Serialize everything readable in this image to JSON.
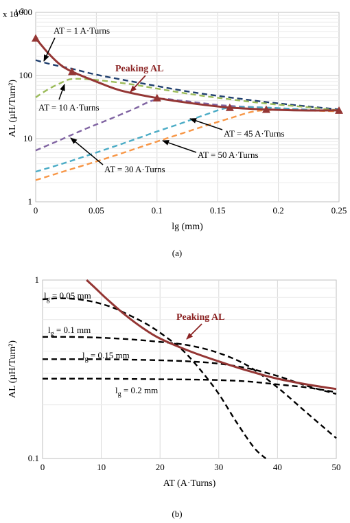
{
  "chart_data": [
    {
      "type": "line",
      "panel": "(a)",
      "xlabel": "lg (mm)",
      "ylabel": "AL (µH/Turn²)",
      "y_multiplier": "x 10",
      "y_multiplier_exp": "-2",
      "xlim": [
        0,
        0.25
      ],
      "ylim": [
        1,
        1000
      ],
      "yscale": "log",
      "grid": true,
      "x_ticks": [
        "0",
        "0.05",
        "0.1",
        "0.15",
        "0.2",
        "0.25"
      ],
      "y_ticks": [
        "1",
        "10",
        "100",
        "1000"
      ],
      "series": [
        {
          "name": "AT = 1 A·Turns",
          "color": "#1F3F6E",
          "dash": true,
          "x": [
            0,
            0.01,
            0.02,
            0.03,
            0.05,
            0.08,
            0.1,
            0.13,
            0.16,
            0.19,
            0.22,
            0.25
          ],
          "y": [
            175,
            155,
            140,
            128,
            103,
            80,
            68,
            54,
            45,
            38,
            33,
            29
          ]
        },
        {
          "name": "AT = 10 A·Turns",
          "color": "#9BBB59",
          "dash": true,
          "x": [
            0,
            0.01,
            0.02,
            0.03,
            0.05,
            0.08,
            0.1,
            0.13,
            0.16,
            0.19,
            0.22,
            0.25
          ],
          "y": [
            45,
            60,
            75,
            88,
            85,
            72,
            62,
            50,
            42,
            36,
            32,
            28
          ]
        },
        {
          "name": "AT = 30 A·Turns",
          "color": "#8064A2",
          "dash": true,
          "x": [
            0,
            0.02,
            0.04,
            0.06,
            0.08,
            0.1,
            0.12,
            0.14,
            0.16,
            0.19,
            0.22,
            0.25
          ],
          "y": [
            6.5,
            9.5,
            14,
            20,
            29,
            42,
            40,
            36,
            33,
            31,
            29,
            27
          ]
        },
        {
          "name": "AT = 45 A·Turns",
          "color": "#4BACC6",
          "dash": true,
          "x": [
            0,
            0.02,
            0.04,
            0.06,
            0.08,
            0.1,
            0.12,
            0.14,
            0.16,
            0.19,
            0.22,
            0.25
          ],
          "y": [
            3,
            3.9,
            5.2,
            7,
            9.5,
            13,
            17.5,
            24,
            31,
            31,
            29,
            27
          ]
        },
        {
          "name": "AT = 50 A·Turns",
          "color": "#F79646",
          "dash": true,
          "x": [
            0,
            0.02,
            0.04,
            0.06,
            0.08,
            0.1,
            0.12,
            0.14,
            0.16,
            0.18,
            0.2,
            0.22,
            0.25
          ],
          "y": [
            2.2,
            2.9,
            3.8,
            5,
            6.7,
            9,
            12,
            16,
            21,
            27,
            28.5,
            28,
            27
          ]
        },
        {
          "name": "Peaking AL",
          "color": "#943634",
          "dash": false,
          "markers": "triangle",
          "x": [
            0,
            0.01,
            0.02,
            0.03,
            0.05,
            0.07,
            0.1,
            0.13,
            0.16,
            0.19,
            0.22,
            0.25
          ],
          "y": [
            390,
            230,
            150,
            115,
            80,
            58,
            44,
            36,
            31,
            29,
            28,
            28
          ],
          "marker_x": [
            0,
            0.03,
            0.1,
            0.16,
            0.19,
            0.25
          ],
          "marker_y": [
            390,
            115,
            44,
            31,
            29,
            28
          ]
        }
      ],
      "annotations": [
        "AT = 1 A·Turns",
        "AT = 10 A·Turns",
        "AT = 30 A·Turns",
        "AT = 45 A·Turns",
        "AT = 50 A·Turns",
        "Peaking AL"
      ]
    },
    {
      "type": "line",
      "panel": "(b)",
      "xlabel": "AT (A·Turns)",
      "ylabel": "AL (µH/Turn²)",
      "xlim": [
        0,
        50
      ],
      "ylim": [
        0.1,
        1
      ],
      "yscale": "log",
      "grid": true,
      "x_ticks": [
        "0",
        "10",
        "20",
        "30",
        "40",
        "50"
      ],
      "y_ticks": [
        "0.1",
        "1"
      ],
      "series": [
        {
          "name": "lg = 0.05 mm",
          "color": "#000000",
          "dash": true,
          "x": [
            0,
            3,
            6,
            9,
            12,
            15,
            18,
            21,
            24,
            27,
            30,
            33,
            36,
            38
          ],
          "y": [
            0.78,
            0.79,
            0.78,
            0.75,
            0.7,
            0.63,
            0.56,
            0.48,
            0.4,
            0.31,
            0.23,
            0.16,
            0.115,
            0.1
          ]
        },
        {
          "name": "lg = 0.1 mm",
          "color": "#000000",
          "dash": true,
          "x": [
            0,
            5,
            10,
            15,
            20,
            25,
            30,
            35,
            40,
            45,
            50
          ],
          "y": [
            0.48,
            0.48,
            0.475,
            0.465,
            0.45,
            0.43,
            0.39,
            0.33,
            0.25,
            0.18,
            0.13
          ]
        },
        {
          "name": "lg = 0.15 mm",
          "color": "#000000",
          "dash": true,
          "x": [
            0,
            5,
            10,
            15,
            20,
            25,
            30,
            35,
            40,
            45,
            50
          ],
          "y": [
            0.36,
            0.36,
            0.36,
            0.358,
            0.355,
            0.35,
            0.34,
            0.32,
            0.29,
            0.255,
            0.23
          ]
        },
        {
          "name": "lg = 0.2 mm",
          "color": "#000000",
          "dash": true,
          "x": [
            0,
            5,
            10,
            15,
            20,
            25,
            30,
            35,
            40,
            45,
            50
          ],
          "y": [
            0.28,
            0.28,
            0.28,
            0.279,
            0.278,
            0.277,
            0.275,
            0.27,
            0.26,
            0.25,
            0.235
          ]
        },
        {
          "name": "Peaking AL",
          "color": "#943634",
          "dash": false,
          "x": [
            7.5,
            9,
            11,
            14,
            17,
            20,
            25,
            30,
            35,
            40,
            45,
            50
          ],
          "y": [
            1.0,
            0.9,
            0.78,
            0.64,
            0.54,
            0.47,
            0.4,
            0.35,
            0.31,
            0.28,
            0.26,
            0.245
          ]
        }
      ],
      "labels": [
        {
          "main": "l",
          "sub": "g",
          "rest": " = 0.05 mm"
        },
        {
          "main": "l",
          "sub": "g",
          "rest": " = 0.1 mm"
        },
        {
          "main": "l",
          "sub": "g",
          "rest": " = 0.15 mm"
        },
        {
          "main": "l",
          "sub": "g",
          "rest": " = 0.2 mm"
        }
      ],
      "annotation": "Peaking AL"
    }
  ]
}
